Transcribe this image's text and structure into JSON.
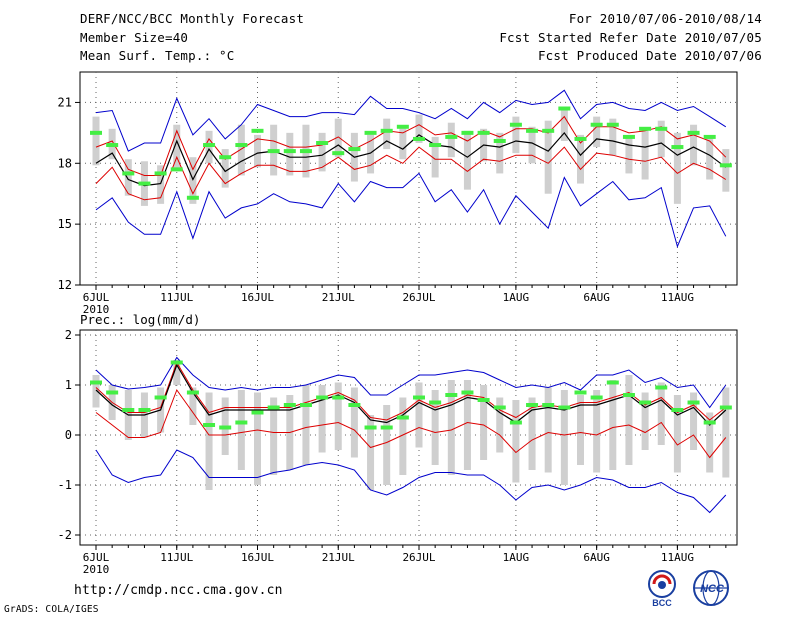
{
  "header": {
    "left_line1": "DERF/NCC/BCC Monthly Forecast",
    "left_line2": "Member Size=40",
    "left_line3": "Mean Surf. Temp.: °C",
    "right_line1": "For 2010/07/06-2010/08/14",
    "right_line2": "Fcst Started Refer Date 2010/07/05",
    "right_line3": "Fcst Produced Date 2010/07/06"
  },
  "footer": {
    "url": "http://cmdp.ncc.cma.gov.cn",
    "credit": "GrADS: COLA/IGES",
    "logo_left_text": "BCC",
    "logo_right_text": "NCC"
  },
  "colors": {
    "envelope": "#0000cc",
    "spread": "#dd0000",
    "mean": "#000000",
    "box": "#cfcfcf",
    "marker": "#44ee44"
  },
  "chart_data": [
    {
      "type": "box-ensemble",
      "title": "Mean Surf. Temp.: °C",
      "ylim": [
        12,
        22.5
      ],
      "yticks": [
        12,
        15,
        18,
        21
      ],
      "xticks": [
        {
          "day": 0,
          "label": "6JUL",
          "sub": "2010"
        },
        {
          "day": 5,
          "label": "11JUL"
        },
        {
          "day": 10,
          "label": "16JUL"
        },
        {
          "day": 15,
          "label": "21JUL"
        },
        {
          "day": 20,
          "label": "26JUL"
        },
        {
          "day": 26,
          "label": "1AUG"
        },
        {
          "day": 31,
          "label": "6AUG"
        },
        {
          "day": 36,
          "label": "11AUG"
        }
      ],
      "series": {
        "max": [
          20.5,
          20.6,
          18.6,
          19.0,
          19.0,
          21.2,
          19.4,
          20.2,
          19.2,
          19.9,
          20.9,
          20.6,
          20.3,
          20.3,
          20.5,
          20.5,
          20.4,
          21.3,
          20.7,
          20.7,
          20.5,
          20.2,
          20.7,
          20.2,
          21.0,
          20.5,
          21.1,
          20.9,
          21.0,
          21.6,
          20.2,
          20.9,
          21.0,
          20.7,
          20.6,
          21.0,
          20.6,
          20.8,
          20.3,
          19.8
        ],
        "upper": [
          18.8,
          19.1,
          17.7,
          17.4,
          17.4,
          19.6,
          17.7,
          19.2,
          18.2,
          18.7,
          19.2,
          19.1,
          18.8,
          18.8,
          18.9,
          19.3,
          18.7,
          19.1,
          19.6,
          19.5,
          19.9,
          19.4,
          19.5,
          19.1,
          19.6,
          19.3,
          19.7,
          19.7,
          19.5,
          20.3,
          19.0,
          19.8,
          19.8,
          19.5,
          19.6,
          19.8,
          19.2,
          19.4,
          19.1,
          18.3
        ],
        "mean": [
          18.0,
          18.5,
          17.2,
          16.9,
          17.0,
          19.1,
          17.2,
          18.7,
          17.6,
          18.1,
          18.5,
          18.6,
          18.3,
          18.3,
          18.4,
          18.9,
          18.3,
          18.5,
          19.1,
          18.7,
          19.4,
          18.9,
          18.8,
          18.3,
          18.9,
          18.8,
          19.1,
          19.0,
          18.6,
          19.5,
          18.4,
          19.2,
          19.1,
          18.9,
          18.8,
          19.0,
          18.4,
          18.8,
          18.4,
          17.8
        ],
        "lower": [
          17.0,
          17.8,
          16.5,
          16.2,
          16.3,
          18.3,
          16.5,
          18.0,
          17.0,
          17.5,
          17.9,
          17.9,
          17.6,
          17.6,
          17.8,
          18.3,
          17.7,
          17.9,
          18.4,
          18.0,
          18.8,
          18.2,
          18.2,
          17.6,
          18.2,
          18.1,
          18.4,
          18.4,
          18.0,
          18.8,
          17.7,
          18.5,
          18.4,
          18.2,
          18.1,
          18.3,
          17.5,
          18.0,
          17.7,
          17.2
        ],
        "min": [
          15.7,
          16.3,
          15.1,
          14.5,
          14.5,
          16.6,
          14.3,
          16.6,
          15.3,
          15.8,
          16.0,
          16.5,
          16.1,
          16.0,
          15.8,
          17.0,
          16.1,
          17.1,
          16.8,
          16.8,
          17.5,
          16.1,
          16.7,
          15.6,
          16.7,
          15.0,
          16.4,
          15.6,
          14.8,
          17.3,
          15.9,
          16.5,
          17.1,
          16.2,
          16.3,
          16.8,
          13.9,
          15.8,
          15.9,
          14.4
        ],
        "box_low": [
          17.9,
          18.2,
          16.4,
          15.9,
          16.0,
          17.7,
          16.0,
          18.0,
          16.8,
          17.4,
          17.8,
          17.4,
          17.4,
          17.3,
          17.6,
          18.3,
          17.1,
          17.5,
          18.7,
          18.2,
          19.0,
          17.3,
          18.3,
          16.7,
          18.1,
          17.5,
          18.5,
          18.0,
          16.5,
          19.1,
          17.0,
          18.8,
          18.4,
          17.5,
          17.2,
          18.3,
          16.0,
          17.9,
          17.2,
          16.6
        ],
        "box_high": [
          20.3,
          19.7,
          18.2,
          18.1,
          17.9,
          19.9,
          18.3,
          19.6,
          18.7,
          19.9,
          19.4,
          19.9,
          19.5,
          19.9,
          19.5,
          20.2,
          19.5,
          19.4,
          20.2,
          19.8,
          20.4,
          19.3,
          20.0,
          19.6,
          19.7,
          19.5,
          20.3,
          19.8,
          20.1,
          20.7,
          19.4,
          20.3,
          20.2,
          19.3,
          19.7,
          20.1,
          19.5,
          19.9,
          19.3,
          18.7
        ],
        "marker": [
          19.5,
          18.9,
          17.5,
          17.0,
          17.5,
          17.7,
          16.3,
          18.9,
          18.3,
          18.9,
          19.6,
          18.6,
          18.6,
          18.6,
          19.0,
          18.5,
          18.7,
          19.5,
          19.6,
          19.8,
          19.2,
          18.9,
          19.3,
          19.5,
          19.5,
          19.1,
          19.9,
          19.6,
          19.6,
          20.7,
          19.2,
          19.9,
          19.9,
          19.3,
          19.7,
          19.7,
          18.8,
          19.5,
          19.3,
          17.9
        ]
      }
    },
    {
      "type": "box-ensemble",
      "title": "Prec.: log(mm/d)",
      "ylim": [
        -2.2,
        2.1
      ],
      "yticks": [
        -2,
        -1,
        0,
        1,
        2
      ],
      "xticks": [
        {
          "day": 0,
          "label": "6JUL",
          "sub": "2010"
        },
        {
          "day": 5,
          "label": "11JUL"
        },
        {
          "day": 10,
          "label": "16JUL"
        },
        {
          "day": 15,
          "label": "21JUL"
        },
        {
          "day": 20,
          "label": "26JUL"
        },
        {
          "day": 26,
          "label": "1AUG"
        },
        {
          "day": 31,
          "label": "6AUG"
        },
        {
          "day": 36,
          "label": "11AUG"
        }
      ],
      "series": {
        "max": [
          1.3,
          1.0,
          0.92,
          0.95,
          1.0,
          1.55,
          1.2,
          0.95,
          0.9,
          0.95,
          0.9,
          0.95,
          0.95,
          1.0,
          1.1,
          1.2,
          1.15,
          0.8,
          0.8,
          1.0,
          1.2,
          1.2,
          1.25,
          1.3,
          1.25,
          1.1,
          0.95,
          1.0,
          0.95,
          1.05,
          0.9,
          1.2,
          1.2,
          1.3,
          1.05,
          1.15,
          0.95,
          1.0,
          0.55,
          1.0
        ],
        "upper": [
          0.95,
          0.65,
          0.45,
          0.45,
          0.55,
          1.45,
          0.9,
          0.45,
          0.55,
          0.55,
          0.55,
          0.55,
          0.55,
          0.65,
          0.75,
          0.85,
          0.7,
          0.35,
          0.3,
          0.45,
          0.7,
          0.55,
          0.65,
          0.8,
          0.75,
          0.5,
          0.35,
          0.55,
          0.6,
          0.55,
          0.65,
          0.65,
          0.75,
          0.85,
          0.6,
          0.75,
          0.45,
          0.6,
          0.3,
          0.55
        ],
        "mean": [
          0.9,
          0.6,
          0.4,
          0.4,
          0.5,
          1.4,
          0.85,
          0.4,
          0.5,
          0.5,
          0.5,
          0.5,
          0.5,
          0.6,
          0.7,
          0.8,
          0.65,
          0.3,
          0.25,
          0.4,
          0.65,
          0.5,
          0.6,
          0.75,
          0.7,
          0.45,
          0.25,
          0.5,
          0.55,
          0.5,
          0.6,
          0.6,
          0.7,
          0.8,
          0.55,
          0.7,
          0.4,
          0.55,
          0.2,
          0.5
        ],
        "lower": [
          0.45,
          0.2,
          -0.05,
          -0.05,
          0.05,
          0.9,
          0.45,
          0.0,
          0.0,
          0.05,
          0.1,
          0.05,
          0.05,
          0.15,
          0.2,
          0.25,
          0.1,
          -0.25,
          -0.15,
          0.0,
          0.15,
          0.05,
          0.1,
          0.25,
          0.2,
          0.0,
          -0.35,
          -0.1,
          0.05,
          0.0,
          0.05,
          0.0,
          0.15,
          0.2,
          0.05,
          0.25,
          -0.2,
          0.0,
          -0.45,
          -0.05
        ],
        "min": [
          -0.3,
          -0.8,
          -0.95,
          -0.85,
          -0.8,
          -0.3,
          -0.45,
          -0.85,
          -0.85,
          -0.85,
          -0.85,
          -0.75,
          -0.7,
          -0.6,
          -0.55,
          -0.6,
          -0.7,
          -1.1,
          -1.2,
          -1.05,
          -0.85,
          -0.75,
          -0.75,
          -0.8,
          -0.8,
          -1.0,
          -1.3,
          -1.05,
          -1.0,
          -1.1,
          -1.0,
          -0.85,
          -0.9,
          -1.05,
          -1.05,
          -0.95,
          -1.15,
          -1.25,
          -1.55,
          -1.2
        ],
        "box_low": [
          0.55,
          0.3,
          -0.1,
          -0.05,
          0.05,
          1.0,
          0.2,
          -1.1,
          -0.4,
          -0.7,
          -1.0,
          -0.8,
          -0.7,
          -0.6,
          -0.35,
          -0.3,
          -0.45,
          -1.1,
          -1.0,
          -0.8,
          -0.25,
          -0.6,
          -0.8,
          -0.7,
          -0.5,
          -0.35,
          -0.95,
          -0.7,
          -0.75,
          -1.0,
          -0.6,
          -0.75,
          -0.7,
          -0.6,
          -0.3,
          -0.2,
          -0.75,
          -0.3,
          -0.75,
          -0.85
        ],
        "box_high": [
          1.2,
          1.0,
          0.9,
          0.85,
          0.95,
          1.5,
          0.95,
          0.85,
          0.75,
          0.9,
          0.85,
          0.75,
          0.8,
          1.0,
          1.0,
          1.05,
          0.95,
          0.4,
          0.6,
          0.75,
          1.05,
          0.9,
          1.1,
          1.1,
          1.0,
          0.75,
          0.7,
          0.75,
          0.95,
          0.9,
          0.8,
          0.9,
          1.1,
          1.2,
          0.85,
          1.05,
          0.8,
          0.85,
          0.45,
          0.95
        ],
        "marker": [
          1.05,
          0.85,
          0.5,
          0.5,
          0.75,
          1.45,
          0.85,
          0.2,
          0.15,
          0.25,
          0.45,
          0.55,
          0.6,
          0.6,
          0.75,
          0.75,
          0.6,
          0.15,
          0.15,
          0.35,
          0.75,
          0.65,
          0.8,
          0.85,
          0.7,
          0.55,
          0.25,
          0.6,
          0.6,
          0.55,
          0.85,
          0.75,
          1.05,
          0.8,
          0.65,
          0.95,
          0.5,
          0.65,
          0.25,
          0.55
        ]
      }
    }
  ]
}
